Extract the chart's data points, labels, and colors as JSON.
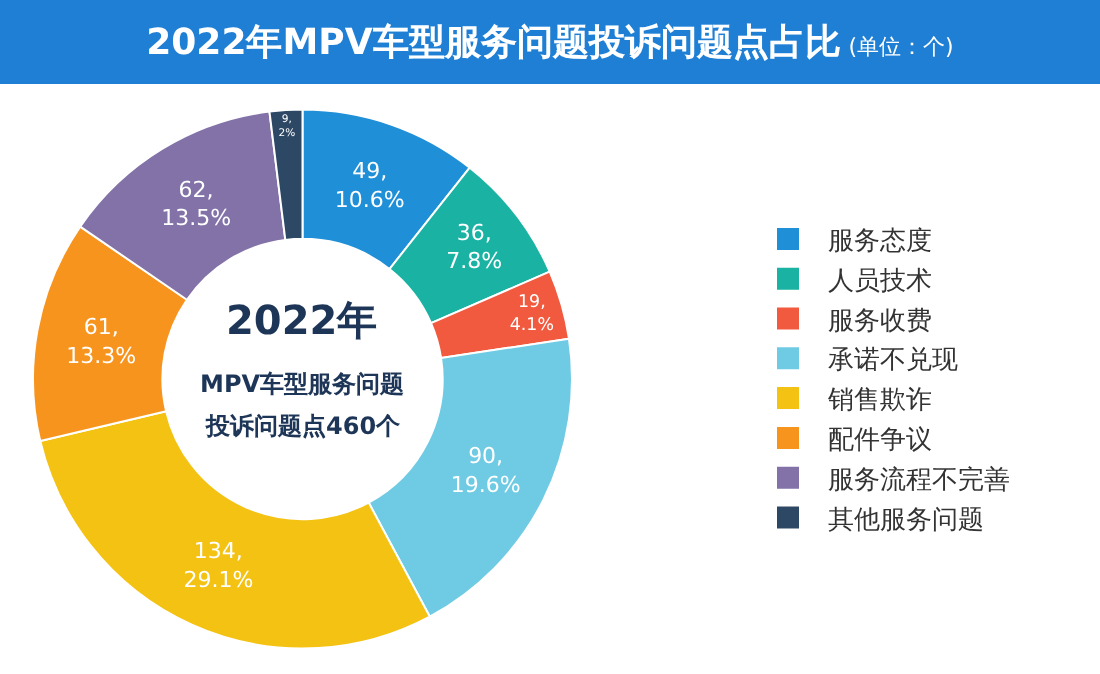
{
  "chart_data": {
    "type": "donut",
    "title": "2022年MPV车型服务问题投诉问题点占比",
    "subtitle": "(单位：个)",
    "categories": [
      "服务态度",
      "人员技术",
      "服务收费",
      "承诺不兑现",
      "销售欺诈",
      "配件争议",
      "服务流程不完善",
      "其他服务问题"
    ],
    "values": [
      49,
      36,
      19,
      90,
      134,
      61,
      62,
      9
    ],
    "value_labels": [
      "49,\n10.6%",
      "36,\n7.8%",
      "19,\n4.1%",
      "90,\n19.6%",
      "134,\n29.1%",
      "61,\n13.3%",
      "62,\n13.5%",
      "9,\n2%"
    ],
    "colors": [
      "#1f8fd8",
      "#1ab3a3",
      "#f15a3f",
      "#6fcbe4",
      "#f3c212",
      "#f7941e",
      "#8272a8",
      "#2d4865"
    ],
    "annotations": [
      "2022年",
      "MPV车型服务问题",
      "投诉问题点460个"
    ],
    "legend": "right"
  }
}
